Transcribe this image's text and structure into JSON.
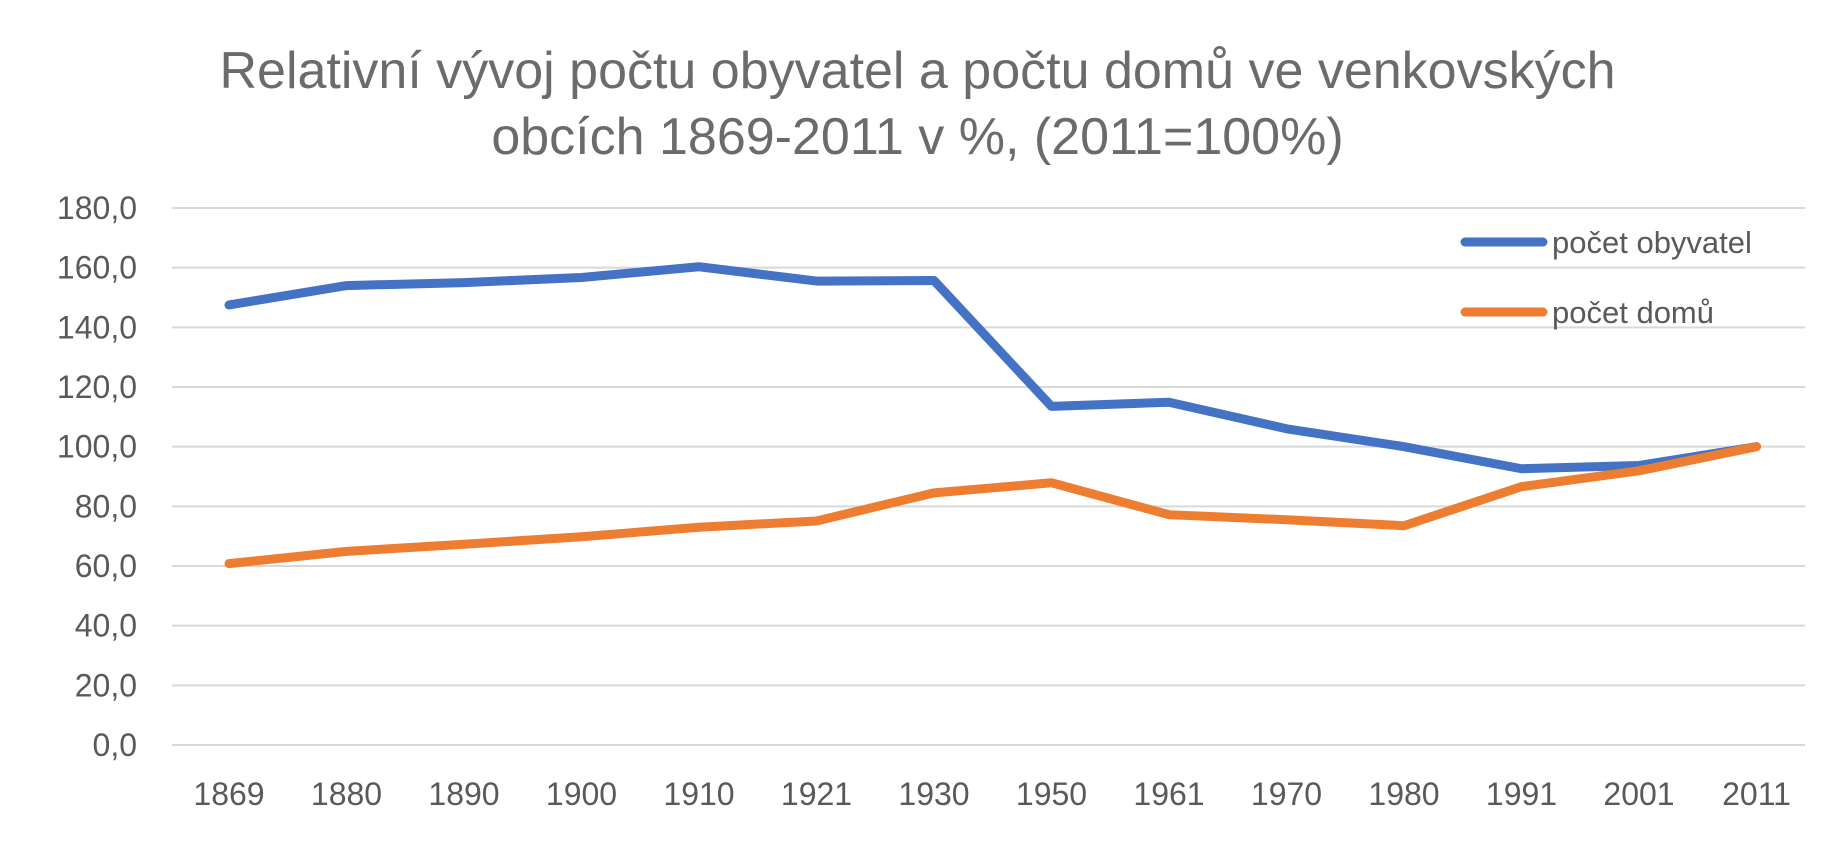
{
  "chart_data": {
    "type": "line",
    "title_lines": [
      "Relativní vývoj počtu obyvatel a počtu domů ve venkovských",
      "obcích 1869-2011 v %, (2011=100%)"
    ],
    "categories": [
      "1869",
      "1880",
      "1890",
      "1900",
      "1910",
      "1921",
      "1930",
      "1950",
      "1961",
      "1970",
      "1980",
      "1991",
      "2001",
      "2011"
    ],
    "y_ticks": [
      "0,0",
      "20,0",
      "40,0",
      "60,0",
      "80,0",
      "100,0",
      "120,0",
      "140,0",
      "160,0",
      "180,0"
    ],
    "ylim": [
      0,
      180
    ],
    "grid": true,
    "legend_position": "top-right",
    "series": [
      {
        "name": "počet obyvatel",
        "color": "#4472c4",
        "values": [
          147.5,
          154.0,
          155.0,
          156.7,
          160.3,
          155.5,
          155.7,
          113.5,
          114.9,
          106.0,
          100.0,
          92.6,
          93.7,
          100.0
        ]
      },
      {
        "name": "počet domů",
        "color": "#ed7d31",
        "values": [
          60.8,
          64.9,
          67.3,
          69.8,
          73.0,
          75.1,
          84.5,
          87.9,
          77.2,
          75.5,
          73.5,
          86.6,
          91.9,
          100.0
        ]
      }
    ],
    "gridline_color": "#d9d9d9"
  }
}
